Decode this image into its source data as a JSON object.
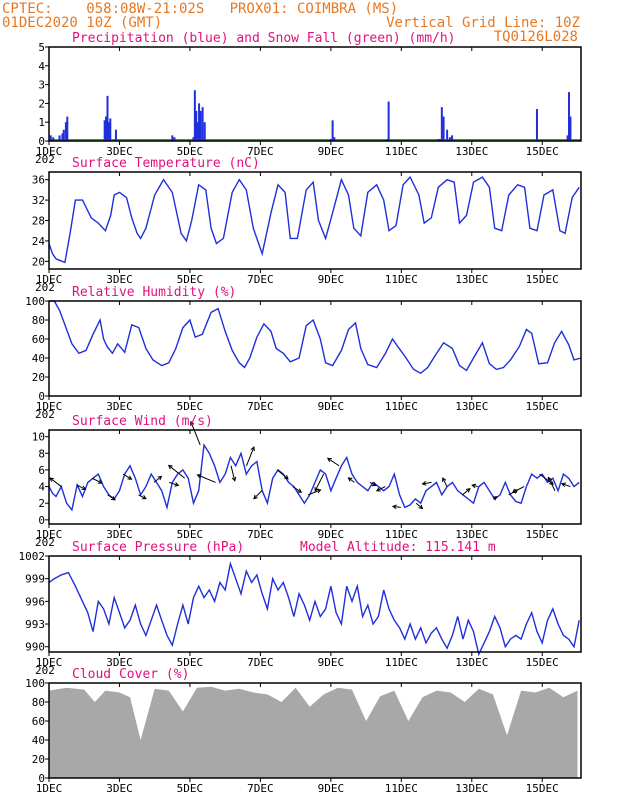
{
  "header": {
    "line1_left": "CPTEC:    058:08W-21:02S   PROX01: COIMBRA (MS)",
    "line2_left": "01DEC2020 10Z (GMT)",
    "line2_right": "Vertical Grid Line: 10Z",
    "line3_right": "TQ0126L028",
    "year_fragment": "202"
  },
  "colors": {
    "header": "#e87722",
    "title": "#e0117f",
    "line": "#1f2fdb",
    "precip": "#1f2fdb",
    "snow": "#19b219",
    "cloud": "#a8a8a8",
    "arrow": "#000000"
  },
  "x_axis": {
    "days_span": 15.1,
    "tick_labels": [
      "1DEC",
      "3DEC",
      "5DEC",
      "7DEC",
      "9DEC",
      "11DEC",
      "13DEC",
      "15DEC"
    ],
    "tick_days": [
      0,
      2,
      4,
      6,
      8,
      10,
      12,
      14
    ]
  },
  "chart_data": [
    {
      "type": "bar",
      "title": "Precipitation (blue) and Snow Fall (green) (mm/h)",
      "ylim": [
        0,
        5
      ],
      "yticks": [
        0,
        1,
        2,
        3,
        4,
        5
      ],
      "series": [
        {
          "name": "precipitation",
          "day": [
            0.05,
            0.12,
            0.3,
            0.38,
            0.42,
            0.48,
            0.52,
            1.58,
            1.62,
            1.66,
            1.7,
            1.74,
            1.9,
            3.5,
            3.56,
            4.1,
            4.14,
            4.18,
            4.22,
            4.26,
            4.3,
            4.36,
            4.42,
            8.0,
            8.05,
            8.1,
            9.6,
            9.64,
            11.05,
            11.1,
            11.15,
            11.2,
            11.3,
            11.38,
            11.44,
            13.85,
            14.72,
            14.76,
            14.8
          ],
          "value": [
            0.3,
            0.2,
            0.3,
            0.4,
            0.6,
            1.0,
            1.3,
            1.1,
            1.3,
            2.4,
            1.0,
            1.2,
            0.6,
            0.3,
            0.2,
            0.2,
            2.7,
            1.6,
            1.0,
            2.0,
            1.6,
            1.8,
            1.0,
            0.1,
            1.1,
            0.2,
            0.1,
            2.1,
            0.1,
            0.1,
            1.8,
            1.3,
            0.6,
            0.2,
            0.3,
            1.7,
            0.3,
            2.6,
            1.3
          ]
        },
        {
          "name": "snowfall",
          "value": 0
        }
      ]
    },
    {
      "type": "line",
      "title": "Surface Temperature (nC)",
      "ylim": [
        18.5,
        37.5
      ],
      "yticks": [
        20,
        24,
        28,
        32,
        36
      ],
      "series": [
        {
          "name": "temperature",
          "day": [
            0,
            0.1,
            0.2,
            0.3,
            0.45,
            0.6,
            0.75,
            0.95,
            1.2,
            1.4,
            1.6,
            1.75,
            1.85,
            2.0,
            2.2,
            2.35,
            2.5,
            2.6,
            2.75,
            3.0,
            3.25,
            3.5,
            3.75,
            3.9,
            4.05,
            4.25,
            4.45,
            4.6,
            4.75,
            4.95,
            5.2,
            5.4,
            5.6,
            5.8,
            6.05,
            6.3,
            6.5,
            6.7,
            6.85,
            7.05,
            7.3,
            7.5,
            7.65,
            7.85,
            8.05,
            8.3,
            8.5,
            8.65,
            8.85,
            9.05,
            9.3,
            9.5,
            9.65,
            9.85,
            10.05,
            10.25,
            10.5,
            10.65,
            10.85,
            11.05,
            11.3,
            11.5,
            11.65,
            11.85,
            12.05,
            12.3,
            12.5,
            12.65,
            12.85,
            13.05,
            13.3,
            13.5,
            13.65,
            13.85,
            14.05,
            14.3,
            14.5,
            14.65,
            14.85,
            15.05
          ],
          "values": [
            23.5,
            21.5,
            20.5,
            20.2,
            19.8,
            25.5,
            32.0,
            32.0,
            28.5,
            27.5,
            26.0,
            29.0,
            33.0,
            33.5,
            32.5,
            28.5,
            25.5,
            24.5,
            26.5,
            33.0,
            36.0,
            33.5,
            25.5,
            24.0,
            28.0,
            35.0,
            34.0,
            26.5,
            23.5,
            24.5,
            33.5,
            36.0,
            34.0,
            26.5,
            21.5,
            29.5,
            35.0,
            33.5,
            24.5,
            24.5,
            34.0,
            35.5,
            28.0,
            24.5,
            29.5,
            36.0,
            33.0,
            26.5,
            25.0,
            33.5,
            35.0,
            32.0,
            26.0,
            27.0,
            35.0,
            36.5,
            33.0,
            27.5,
            28.5,
            34.5,
            36.0,
            35.5,
            27.5,
            29.0,
            35.5,
            36.5,
            34.5,
            26.5,
            26.0,
            33.0,
            35.0,
            34.5,
            26.5,
            26.0,
            33.0,
            34.0,
            26.0,
            25.5,
            32.5,
            34.5
          ]
        }
      ]
    },
    {
      "type": "line",
      "title": "Relative Humidity (%)",
      "ylim": [
        0,
        100
      ],
      "yticks": [
        0,
        20,
        40,
        60,
        80,
        100
      ],
      "series": [
        {
          "name": "relative_humidity",
          "day": [
            0,
            0.15,
            0.3,
            0.45,
            0.65,
            0.85,
            1.05,
            1.25,
            1.45,
            1.55,
            1.65,
            1.8,
            1.95,
            2.15,
            2.35,
            2.55,
            2.75,
            2.95,
            3.2,
            3.4,
            3.6,
            3.8,
            4.0,
            4.15,
            4.35,
            4.6,
            4.8,
            5.0,
            5.2,
            5.4,
            5.55,
            5.7,
            5.9,
            6.1,
            6.3,
            6.45,
            6.65,
            6.85,
            7.1,
            7.3,
            7.5,
            7.7,
            7.85,
            8.05,
            8.3,
            8.5,
            8.7,
            8.85,
            9.05,
            9.3,
            9.55,
            9.75,
            9.9,
            10.1,
            10.35,
            10.55,
            10.75,
            10.95,
            11.2,
            11.45,
            11.65,
            11.85,
            12.05,
            12.3,
            12.5,
            12.7,
            12.9,
            13.1,
            13.35,
            13.55,
            13.7,
            13.9,
            14.15,
            14.35,
            14.55,
            14.75,
            14.9,
            15.1
          ],
          "values": [
            100,
            100,
            90,
            75,
            55,
            45,
            48,
            65,
            80,
            60,
            52,
            45,
            55,
            46,
            75,
            72,
            50,
            38,
            32,
            35,
            50,
            72,
            80,
            62,
            65,
            88,
            92,
            68,
            48,
            35,
            30,
            40,
            62,
            76,
            68,
            50,
            45,
            36,
            40,
            74,
            80,
            60,
            35,
            32,
            48,
            70,
            77,
            50,
            33,
            30,
            45,
            60,
            52,
            42,
            28,
            24,
            30,
            42,
            56,
            50,
            32,
            27,
            40,
            56,
            34,
            28,
            30,
            38,
            52,
            70,
            66,
            34,
            35,
            56,
            68,
            54,
            38,
            40
          ]
        }
      ]
    },
    {
      "type": "line",
      "title": "Surface Wind (m/s)",
      "ylim": [
        -0.5,
        10.8
      ],
      "yticks": [
        0,
        2,
        4,
        6,
        8,
        10
      ],
      "series": [
        {
          "name": "wind_speed",
          "day": [
            0,
            0.1,
            0.2,
            0.35,
            0.5,
            0.65,
            0.8,
            0.95,
            1.1,
            1.25,
            1.4,
            1.55,
            1.7,
            1.85,
            2.0,
            2.15,
            2.3,
            2.45,
            2.6,
            2.75,
            2.9,
            3.05,
            3.2,
            3.35,
            3.5,
            3.65,
            3.8,
            3.95,
            4.1,
            4.25,
            4.4,
            4.55,
            4.7,
            4.85,
            5.0,
            5.15,
            5.3,
            5.45,
            5.6,
            5.75,
            5.9,
            6.05,
            6.2,
            6.35,
            6.5,
            6.65,
            6.8,
            6.95,
            7.1,
            7.25,
            7.4,
            7.55,
            7.7,
            7.85,
            8.0,
            8.15,
            8.3,
            8.45,
            8.6,
            8.75,
            8.9,
            9.05,
            9.2,
            9.35,
            9.5,
            9.65,
            9.8,
            9.95,
            10.1,
            10.25,
            10.4,
            10.55,
            10.7,
            10.85,
            11.0,
            11.15,
            11.3,
            11.45,
            11.6,
            11.75,
            11.9,
            12.05,
            12.2,
            12.35,
            12.5,
            12.65,
            12.8,
            12.95,
            13.1,
            13.25,
            13.4,
            13.55,
            13.7,
            13.85,
            14.0,
            14.15,
            14.3,
            14.45,
            14.6,
            14.75,
            14.9,
            15.05
          ],
          "values": [
            4.0,
            3.2,
            2.8,
            4.0,
            2.0,
            1.2,
            4.2,
            2.8,
            4.5,
            5.0,
            5.5,
            4.0,
            3.0,
            2.5,
            3.5,
            5.5,
            6.5,
            5.0,
            3.0,
            4.0,
            5.5,
            4.5,
            3.5,
            1.5,
            4.5,
            5.5,
            6.0,
            5.0,
            2.0,
            3.5,
            9.0,
            8.0,
            6.5,
            4.5,
            5.5,
            7.5,
            6.5,
            8.0,
            5.5,
            6.5,
            7.0,
            3.5,
            2.0,
            5.0,
            6.0,
            5.5,
            4.5,
            4.0,
            3.0,
            2.0,
            3.0,
            4.5,
            6.0,
            5.5,
            3.5,
            5.0,
            6.5,
            7.5,
            5.5,
            4.5,
            4.0,
            3.5,
            4.5,
            4.0,
            3.5,
            4.0,
            5.5,
            3.0,
            1.5,
            1.8,
            2.5,
            2.0,
            3.5,
            4.0,
            4.5,
            3.0,
            4.0,
            4.5,
            3.5,
            3.0,
            2.5,
            2.0,
            4.0,
            4.5,
            3.5,
            2.5,
            3.0,
            4.5,
            3.0,
            2.2,
            2.0,
            4.0,
            5.5,
            5.0,
            5.5,
            4.5,
            5.0,
            3.5,
            5.5,
            5.0,
            4.0,
            4.5
          ]
        }
      ],
      "vectors_u": [
        -0.8,
        0.6,
        0.6,
        0.6,
        0.5,
        0.6,
        0.5,
        0.6,
        -1.0,
        -0.4,
        -1.2,
        0.2,
        0.4,
        -0.6,
        0.6,
        0.6,
        1.0,
        -0.5,
        -0.6,
        -0.4,
        0.4,
        -0.6,
        -0.8,
        0.6,
        -0.6,
        -0.3,
        0.6,
        -0.4,
        0.3,
        0.7,
        -0.8,
        0.8,
        -0.5,
        -0.6
      ],
      "vectors_v": [
        0.6,
        -0.3,
        -0.3,
        -0.4,
        -0.3,
        -0.3,
        0.4,
        -0.2,
        0.8,
        1.0,
        0.5,
        -0.8,
        1.0,
        -0.6,
        -0.5,
        -0.4,
        0.4,
        -1.0,
        0.4,
        0.3,
        -0.2,
        -0.3,
        0.1,
        -0.5,
        -0.1,
        0.6,
        0.5,
        0.1,
        0.2,
        0.4,
        -0.4,
        -0.6,
        1.0,
        0.2
      ]
    },
    {
      "type": "line",
      "title": "Surface Pressure (hPa)",
      "subtitle": "Model Altitude: 115.141  m",
      "ylim": [
        989.3,
        1002
      ],
      "yticks": [
        990,
        993,
        996,
        999,
        1002
      ],
      "series": [
        {
          "name": "surface_pressure",
          "day": [
            0,
            0.15,
            0.35,
            0.55,
            0.75,
            0.95,
            1.1,
            1.25,
            1.4,
            1.55,
            1.7,
            1.85,
            2.0,
            2.15,
            2.3,
            2.45,
            2.6,
            2.75,
            2.9,
            3.05,
            3.2,
            3.35,
            3.5,
            3.65,
            3.8,
            3.95,
            4.1,
            4.25,
            4.4,
            4.55,
            4.7,
            4.85,
            5.0,
            5.15,
            5.3,
            5.45,
            5.6,
            5.75,
            5.9,
            6.05,
            6.2,
            6.35,
            6.5,
            6.65,
            6.8,
            6.95,
            7.1,
            7.25,
            7.4,
            7.55,
            7.7,
            7.85,
            8.0,
            8.15,
            8.3,
            8.45,
            8.6,
            8.75,
            8.9,
            9.05,
            9.2,
            9.35,
            9.5,
            9.65,
            9.8,
            9.95,
            10.1,
            10.25,
            10.4,
            10.55,
            10.7,
            10.85,
            11.0,
            11.15,
            11.3,
            11.45,
            11.6,
            11.75,
            11.9,
            12.05,
            12.2,
            12.35,
            12.5,
            12.65,
            12.8,
            12.95,
            13.1,
            13.25,
            13.4,
            13.55,
            13.7,
            13.85,
            14.0,
            14.15,
            14.3,
            14.45,
            14.6,
            14.75,
            14.9,
            15.05
          ],
          "values": [
            998.5,
            999.0,
            999.5,
            999.8,
            998.0,
            996.0,
            994.5,
            992.0,
            996.0,
            995.0,
            993.0,
            996.5,
            994.5,
            992.5,
            993.5,
            995.5,
            993.0,
            991.5,
            993.5,
            995.5,
            993.5,
            991.5,
            990.2,
            993.0,
            995.5,
            993.0,
            996.5,
            998.0,
            996.5,
            997.5,
            996.0,
            998.5,
            997.5,
            1001.0,
            999.0,
            997.0,
            1000.0,
            998.5,
            999.5,
            997.0,
            995.0,
            999.0,
            997.5,
            998.5,
            996.5,
            994.0,
            997.0,
            995.5,
            993.5,
            996.0,
            994.0,
            995.0,
            998.0,
            994.5,
            993.0,
            998.0,
            996.0,
            998.0,
            994.0,
            995.5,
            993.0,
            994.0,
            997.5,
            995.0,
            993.5,
            992.5,
            991.0,
            993.0,
            991.0,
            992.5,
            990.5,
            991.8,
            992.5,
            991.0,
            989.8,
            991.5,
            994.0,
            991.0,
            993.5,
            992.0,
            989.0,
            990.5,
            992.0,
            994.0,
            992.5,
            990.0,
            991.0,
            991.5,
            991.0,
            993.0,
            994.5,
            992.0,
            990.5,
            993.5,
            995.0,
            993.0,
            991.5,
            991.0,
            990.0,
            993.5
          ]
        }
      ]
    },
    {
      "type": "area",
      "title": "Cloud Cover (%)",
      "ylim": [
        0,
        100
      ],
      "yticks": [
        0,
        20,
        40,
        60,
        80,
        100
      ],
      "series": [
        {
          "name": "cloud_cover",
          "day": [
            0,
            0.5,
            1.0,
            1.3,
            1.6,
            2.0,
            2.3,
            2.6,
            3.0,
            3.4,
            3.8,
            4.2,
            4.6,
            5.0,
            5.4,
            5.8,
            6.2,
            6.6,
            7.0,
            7.4,
            7.8,
            8.2,
            8.6,
            9.0,
            9.4,
            9.8,
            10.2,
            10.6,
            11.0,
            11.4,
            11.8,
            12.2,
            12.6,
            13.0,
            13.4,
            13.8,
            14.2,
            14.6,
            15.0
          ],
          "values": [
            92,
            95,
            93,
            80,
            92,
            90,
            85,
            40,
            94,
            92,
            70,
            95,
            96,
            92,
            94,
            90,
            88,
            80,
            95,
            75,
            88,
            95,
            93,
            60,
            86,
            92,
            60,
            85,
            92,
            90,
            80,
            94,
            88,
            45,
            92,
            90,
            95,
            85,
            92
          ]
        }
      ]
    }
  ]
}
